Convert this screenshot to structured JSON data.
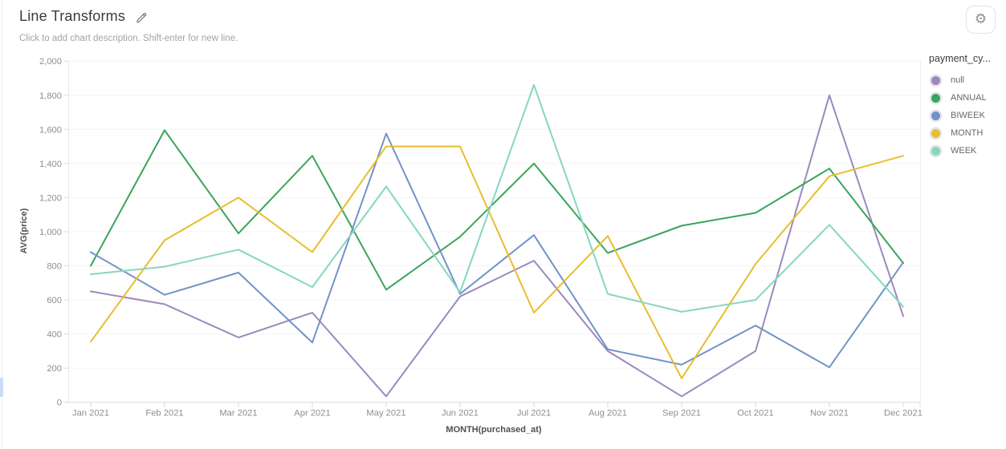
{
  "header": {
    "title": "Line Transforms",
    "description_placeholder": "Click to add chart description. Shift-enter for new line."
  },
  "legend": {
    "title": "payment_cy..."
  },
  "chart_data": {
    "type": "line",
    "title": "Line Transforms",
    "xlabel": "MONTH(purchased_at)",
    "ylabel": "AVG(price)",
    "ylim": [
      0,
      2000
    ],
    "ytick_step": 200,
    "grid": "horizontal",
    "legend_position": "right",
    "legend_title": "payment_cy...",
    "categories": [
      "Jan 2021",
      "Feb 2021",
      "Mar 2021",
      "Apr 2021",
      "May 2021",
      "Jun 2021",
      "Jul 2021",
      "Aug 2021",
      "Sep 2021",
      "Oct 2021",
      "Nov 2021",
      "Dec 2021"
    ],
    "series": [
      {
        "name": "null",
        "color": "#9b89bd",
        "values": [
          650,
          575,
          380,
          525,
          35,
          620,
          830,
          300,
          35,
          300,
          1800,
          505
        ]
      },
      {
        "name": "ANNUAL",
        "color": "#3aa45c",
        "values": [
          800,
          1595,
          990,
          1445,
          660,
          970,
          1400,
          875,
          1035,
          1110,
          1370,
          815
        ]
      },
      {
        "name": "BIWEEK",
        "color": "#7193c8",
        "values": [
          880,
          630,
          760,
          350,
          1575,
          635,
          980,
          310,
          220,
          450,
          205,
          820
        ]
      },
      {
        "name": "MONTH",
        "color": "#eabd2e",
        "values": [
          355,
          950,
          1200,
          880,
          1500,
          1500,
          525,
          975,
          140,
          810,
          1325,
          1445
        ]
      },
      {
        "name": "WEEK",
        "color": "#87d7bf",
        "values": [
          750,
          795,
          895,
          675,
          1265,
          645,
          1860,
          635,
          530,
          600,
          1040,
          560
        ]
      }
    ]
  }
}
